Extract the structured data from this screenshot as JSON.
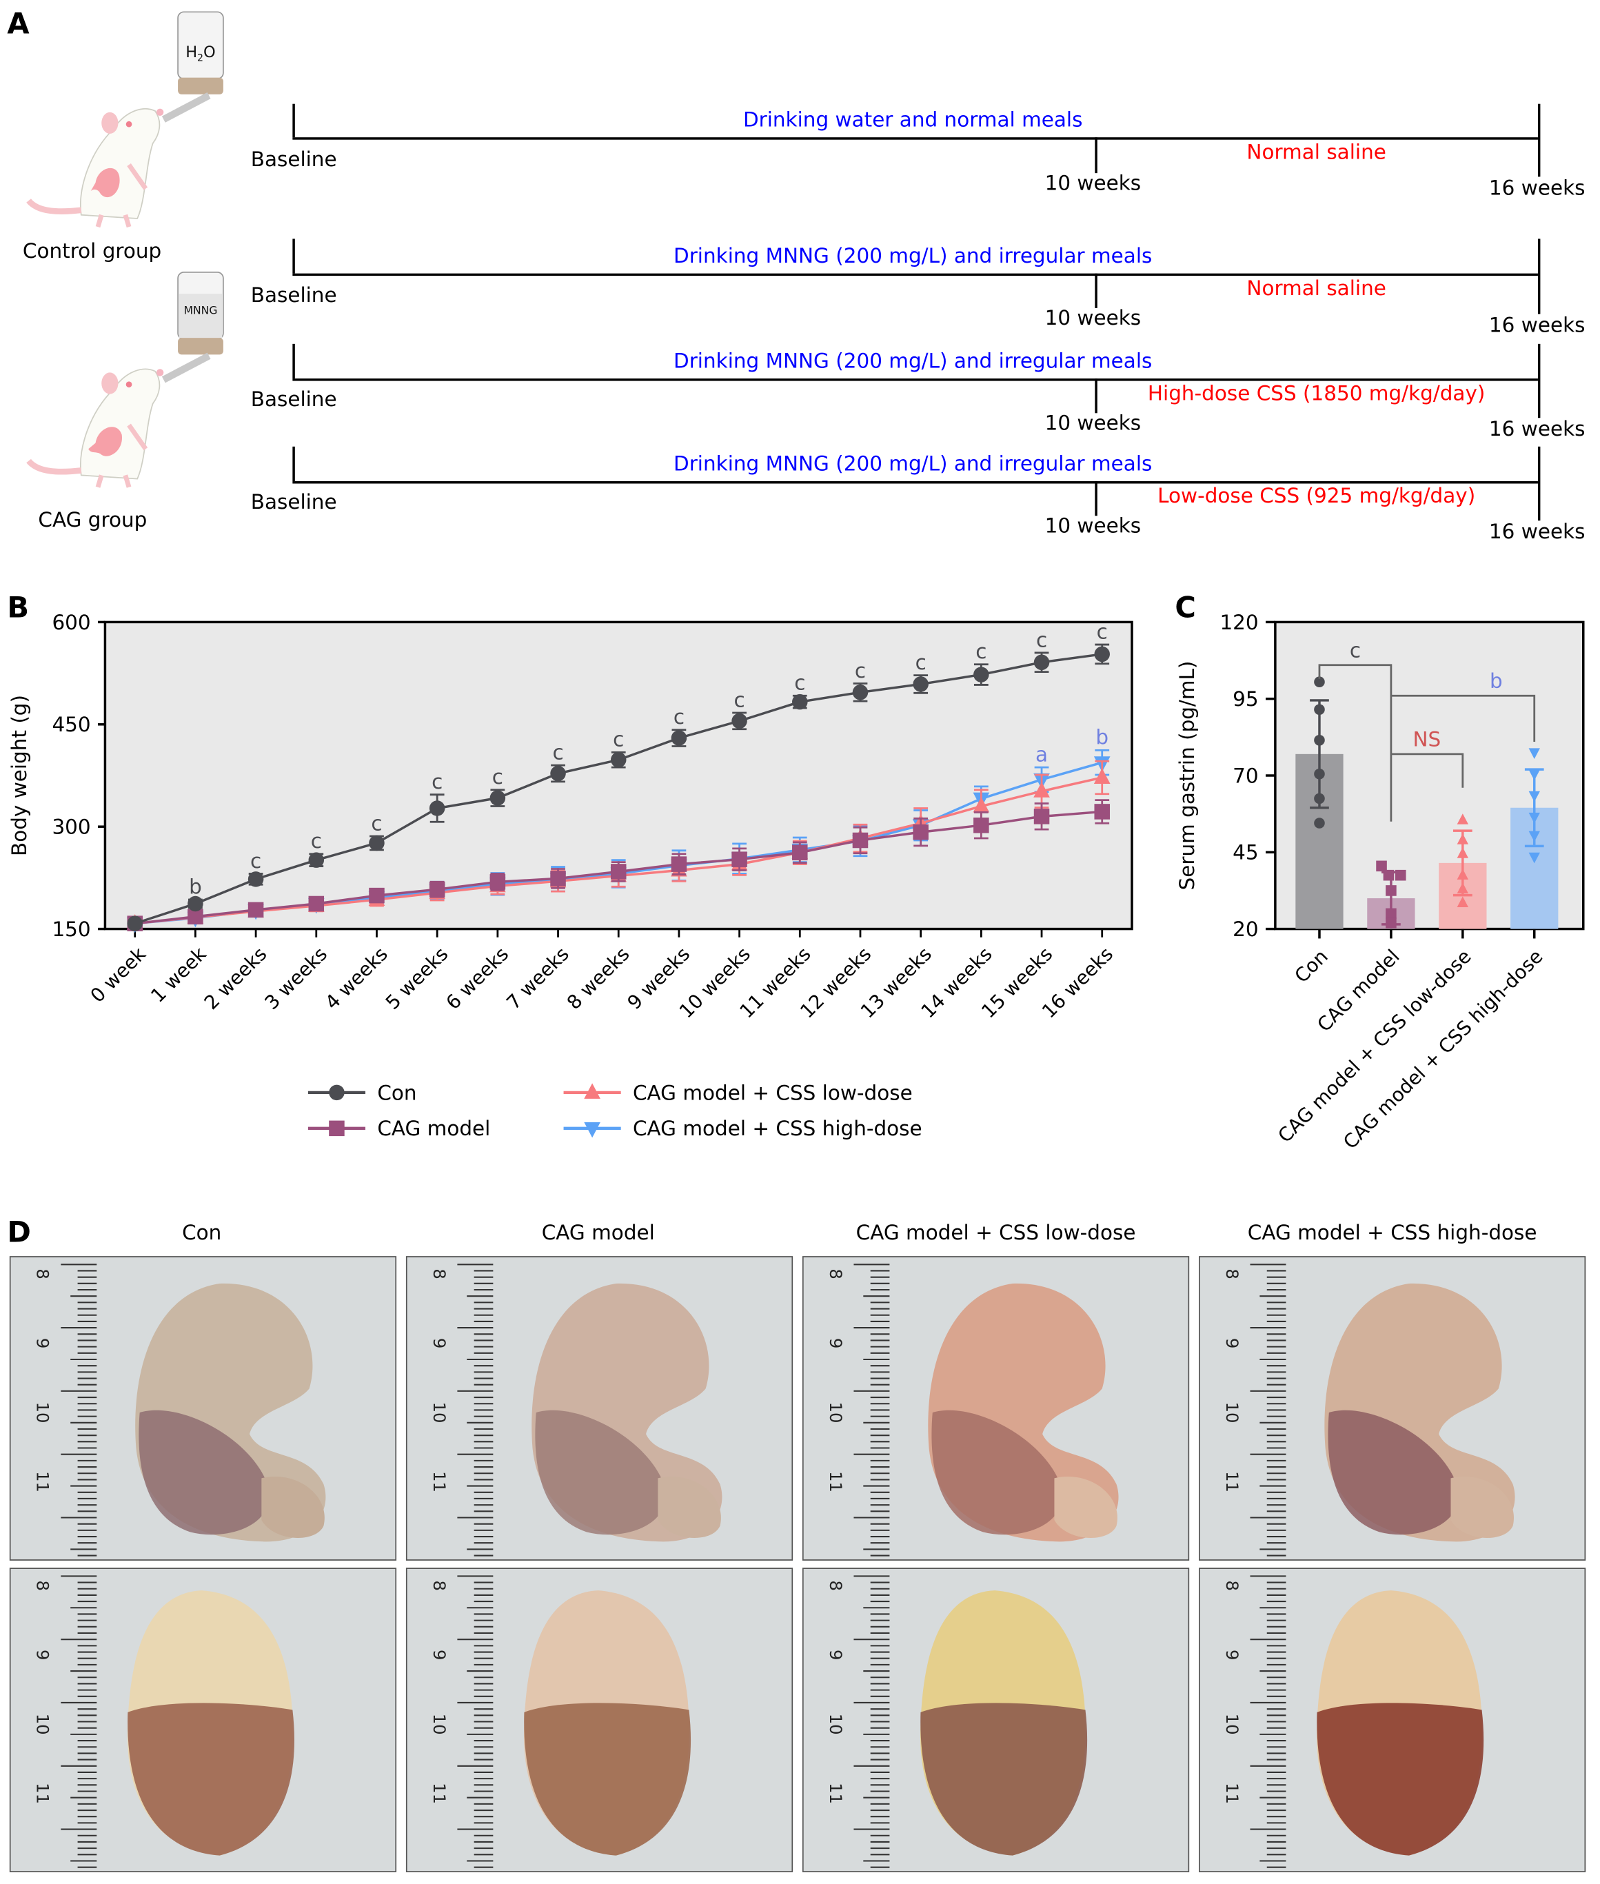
{
  "panels": {
    "A": {
      "label": "A",
      "groups": [
        {
          "name": "Control group",
          "bottle_label": "H2O"
        },
        {
          "name": "CAG group",
          "bottle_label": "MNNG"
        }
      ],
      "timelines": [
        {
          "start": "Baseline",
          "mid": "10 weeks",
          "end": "16 weeks",
          "phase1": "Drinking water and normal meals",
          "phase2": "Normal saline"
        },
        {
          "start": "Baseline",
          "mid": "10 weeks",
          "end": "16 weeks",
          "phase1": "Drinking MNNG (200 mg/L) and irregular meals",
          "phase2": "Normal saline"
        },
        {
          "start": "Baseline",
          "mid": "10 weeks",
          "end": "16 weeks",
          "phase1": "Drinking MNNG (200 mg/L) and irregular meals",
          "phase2": "High-dose CSS (1850 mg/kg/day)"
        },
        {
          "start": "Baseline",
          "mid": "10 weeks",
          "end": "16 weeks",
          "phase1": "Drinking MNNG (200 mg/L) and irregular meals",
          "phase2": "Low-dose CSS (925 mg/kg/day)"
        }
      ]
    },
    "B": {
      "label": "B"
    },
    "C": {
      "label": "C"
    },
    "D": {
      "label": "D",
      "columns": [
        "Con",
        "CAG model",
        "CAG model + CSS low-dose",
        "CAG model + CSS high-dose"
      ],
      "ruler_labels": [
        "8",
        "9",
        "10",
        "11"
      ]
    }
  },
  "colors": {
    "con": "#4b4c51",
    "model": "#9b4f7d",
    "low": "#f77a7e",
    "high": "#5ba2f6",
    "sig_blue": "#6f80e0",
    "sig_red": "#d05454",
    "phase1_text": "#0000ff",
    "phase2_text": "#ff0000"
  },
  "chart_data": [
    {
      "type": "line",
      "title": "",
      "xlabel": "",
      "ylabel": "Body weight (g)",
      "ylim": [
        150,
        600
      ],
      "yticks": [
        150,
        300,
        450,
        600
      ],
      "grid": false,
      "legend_position": "bottom",
      "categories": [
        "0 week",
        "1 week",
        "2 weeks",
        "3 weeks",
        "4 weeks",
        "5 weeks",
        "6 weeks",
        "7 weeks",
        "8 weeks",
        "9 weeks",
        "10 weeks",
        "11 weeks",
        "12 weeks",
        "13 weeks",
        "14 weeks",
        "15 weeks",
        "16 weeks"
      ],
      "series": [
        {
          "name": "Con",
          "marker": "circle",
          "color_key": "con",
          "values": [
            158,
            187,
            223,
            251,
            276,
            327,
            342,
            378,
            398,
            430,
            455,
            483,
            497,
            509,
            523,
            541,
            553
          ],
          "errors": [
            3,
            6,
            8,
            9,
            10,
            20,
            12,
            12,
            11,
            12,
            12,
            9,
            13,
            13,
            15,
            14,
            14
          ]
        },
        {
          "name": "CAG model",
          "marker": "square",
          "color_key": "model",
          "values": [
            158,
            168,
            178,
            187,
            199,
            208,
            219,
            224,
            234,
            245,
            252,
            262,
            280,
            292,
            302,
            315,
            322
          ],
          "errors": [
            3,
            5,
            6,
            8,
            9,
            11,
            12,
            14,
            14,
            15,
            16,
            15,
            19,
            20,
            19,
            19,
            17
          ]
        },
        {
          "name": "CAG model + CSS low-dose",
          "marker": "triangle-up",
          "color_key": "low",
          "values": [
            158,
            167,
            176,
            184,
            193,
            203,
            213,
            220,
            228,
            236,
            245,
            262,
            283,
            305,
            330,
            352,
            372
          ],
          "errors": [
            3,
            5,
            6,
            8,
            9,
            11,
            12,
            15,
            16,
            16,
            16,
            17,
            20,
            22,
            24,
            24,
            24
          ]
        },
        {
          "name": "CAG model + CSS high-dose",
          "marker": "triangle-down",
          "color_key": "high",
          "values": [
            158,
            166,
            177,
            186,
            196,
            206,
            216,
            223,
            231,
            243,
            253,
            266,
            279,
            302,
            341,
            369,
            394
          ],
          "errors": [
            3,
            5,
            7,
            9,
            9,
            13,
            16,
            18,
            20,
            22,
            22,
            18,
            22,
            22,
            18,
            18,
            18
          ]
        }
      ],
      "annotations": [
        {
          "x": "1 week",
          "text": "b",
          "color_key": "con"
        },
        {
          "x": "2 weeks",
          "text": "c",
          "color_key": "con"
        },
        {
          "x": "3 weeks",
          "text": "c",
          "color_key": "con"
        },
        {
          "x": "4 weeks",
          "text": "c",
          "color_key": "con"
        },
        {
          "x": "5 weeks",
          "text": "c",
          "color_key": "con"
        },
        {
          "x": "6 weeks",
          "text": "c",
          "color_key": "con"
        },
        {
          "x": "7 weeks",
          "text": "c",
          "color_key": "con"
        },
        {
          "x": "8 weeks",
          "text": "c",
          "color_key": "con"
        },
        {
          "x": "9 weeks",
          "text": "c",
          "color_key": "con"
        },
        {
          "x": "10 weeks",
          "text": "c",
          "color_key": "con"
        },
        {
          "x": "11 weeks",
          "text": "c",
          "color_key": "con"
        },
        {
          "x": "12 weeks",
          "text": "c",
          "color_key": "con"
        },
        {
          "x": "13 weeks",
          "text": "c",
          "color_key": "con"
        },
        {
          "x": "14 weeks",
          "text": "c",
          "color_key": "con"
        },
        {
          "x": "15 weeks",
          "text": "c",
          "color_key": "con"
        },
        {
          "x": "16 weeks",
          "text": "c",
          "color_key": "con"
        },
        {
          "x": "15 weeks",
          "text": "a",
          "color_key": "sig_blue",
          "series": "CAG model + CSS high-dose"
        },
        {
          "x": "16 weeks",
          "text": "b",
          "color_key": "sig_blue",
          "series": "CAG model + CSS high-dose"
        }
      ]
    },
    {
      "type": "bar",
      "title": "",
      "xlabel": "",
      "ylabel": "Serum gastrin (pg/mL)",
      "ylim": [
        20,
        120
      ],
      "yticks": [
        20,
        45,
        70,
        95,
        120
      ],
      "grid": false,
      "categories": [
        "Con",
        "CAG model",
        "CAG model + CSS low-dose",
        "CAG model + CSS high-dose"
      ],
      "values": [
        77,
        30,
        41.5,
        59.5
      ],
      "errors": [
        17.5,
        8.5,
        10.5,
        12.5
      ],
      "points": [
        [
          100.5,
          91.5,
          81.5,
          70.5,
          62.5,
          54.5
        ],
        [
          40.5,
          37.5,
          37.5,
          32.5,
          25,
          22
        ],
        [
          55.5,
          49,
          44.5,
          37.5,
          33,
          28.5
        ],
        [
          77.5,
          70.5,
          63.5,
          56.5,
          50.5,
          43.5
        ]
      ],
      "markers": [
        "circle",
        "square",
        "triangle-up",
        "triangle-down"
      ],
      "color_keys": [
        "con",
        "model",
        "low",
        "high"
      ],
      "comparisons": [
        {
          "from": "Con",
          "to": "CAG model",
          "text": "c",
          "color_key": "con"
        },
        {
          "from": "CAG model",
          "to": "CAG model + CSS high-dose",
          "text": "b",
          "color_key": "sig_blue"
        },
        {
          "from": "CAG model",
          "to": "CAG model + CSS low-dose",
          "text": "NS",
          "color_key": "sig_red"
        }
      ]
    }
  ]
}
